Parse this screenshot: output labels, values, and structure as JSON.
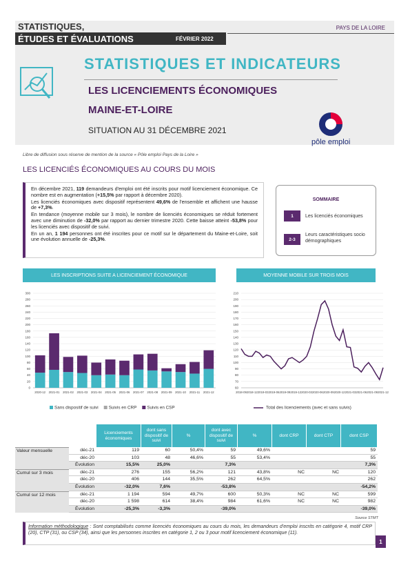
{
  "header": {
    "series_title": "STATISTIQUES,",
    "series_title_2": "ÉTUDES ET ÉVALUATIONS",
    "date": "FÉVRIER 2022",
    "region": "PAYS DE LA LOIRE"
  },
  "title": {
    "main": "STATISTIQUES ET INDICATEURS",
    "topic": "LES LICENCIEMENTS ÉCONOMIQUES",
    "area": "MAINE-ET-LOIRE",
    "situation": "SITUATION AU 31 DÉCEMBRE 2021",
    "logo": "pôle emploi"
  },
  "source_notice": "Libre de diffusion sous réserve de mention de la source « Pôle emploi Pays de la Loire »",
  "section_title": "LES LICENCIÉS ÉCONOMIQUES AU COURS DU MOIS",
  "intro": {
    "paragraphs": [
      [
        "En décembre 2021, ",
        "119",
        " demandeurs d'emploi ont été inscrits pour motif licenciement économique. Ce nombre est en augmentation (",
        "+15,5%",
        " par rapport à décembre 2020)."
      ],
      [
        "Les licenciés économiques avec dispositif représentent ",
        "49,6%",
        " de l'ensemble et affichent une hausse de ",
        "+7,3%",
        "."
      ],
      [
        "En tendance (moyenne mobile sur 3 mois), le nombre de licenciés économiques se réduit fortement avec une diminution de ",
        "-32,0%",
        " par rapport au dernier trimestre 2020. Cette baisse atteint ",
        "-53,8%",
        " pour les licenciés avec dispositif de suivi."
      ],
      [
        "En un an, ",
        "1 194",
        " personnes ont été inscrites pour ce motif sur le département du Maine-et-Loire, soit une évolution annuelle de ",
        "-25,3%",
        "."
      ]
    ]
  },
  "summary": {
    "title": "SOMMAIRE",
    "items": [
      {
        "num": "1",
        "label": "Les licenciés économiques"
      },
      {
        "num": "2-3",
        "label": "Leurs caractéristiques socio démographiques"
      }
    ]
  },
  "chart_data": [
    {
      "type": "bar",
      "stacked": true,
      "title": "LES INSCRIPTIONS SUITE A LICENCIEMENT ÉCONOMIQUE",
      "categories": [
        "2020-12",
        "2021-01",
        "2021-02",
        "2021-03",
        "2021-04",
        "2021-05",
        "2021-06",
        "2021-07",
        "2021-08",
        "2021-09",
        "2021-10",
        "2021-11",
        "2021-12"
      ],
      "series": [
        {
          "name": "Sans dispositif de suivi",
          "color": "#41b6c4",
          "values": [
            48,
            57,
            50,
            47,
            40,
            42,
            40,
            58,
            55,
            52,
            50,
            45,
            60
          ]
        },
        {
          "name": "Suivis en CRP",
          "color": "#a6a6a6",
          "values": [
            0,
            0,
            0,
            0,
            0,
            0,
            0,
            0,
            0,
            0,
            0,
            0,
            0
          ]
        },
        {
          "name": "Suivis en CSP",
          "color": "#5b2a6e",
          "values": [
            55,
            116,
            48,
            55,
            40,
            48,
            46,
            48,
            53,
            10,
            25,
            37,
            59
          ]
        }
      ],
      "ylim": [
        0,
        300
      ],
      "yticks": [
        0,
        20,
        40,
        60,
        80,
        100,
        120,
        140,
        160,
        180,
        200,
        220,
        240,
        260,
        280,
        300
      ],
      "grid": true
    },
    {
      "type": "line",
      "title": "MOYENNE MOBILE SUR TROIS MOIS",
      "categories": [
        "2018-09",
        null,
        null,
        "2018-12",
        null,
        null,
        "2019-03",
        null,
        null,
        "2019-06",
        null,
        null,
        "2019-09",
        null,
        null,
        "2019-12",
        null,
        null,
        "2020-03",
        null,
        null,
        "2020-06",
        null,
        null,
        "2020-09",
        null,
        null,
        "2020-12",
        null,
        null,
        "2021-03",
        null,
        null,
        "2021-06",
        null,
        null,
        "2021-09",
        null,
        null,
        "2021-12"
      ],
      "series": [
        {
          "name": "Total des licenciements (avec et sans suivis)",
          "color": "#4b1f5c",
          "values": [
            122,
            113,
            110,
            110,
            118,
            115,
            108,
            112,
            110,
            102,
            96,
            90,
            95,
            106,
            108,
            104,
            100,
            104,
            110,
            125,
            150,
            170,
            192,
            198,
            185,
            160,
            142,
            135,
            152,
            125,
            124,
            93,
            91,
            85,
            94,
            100,
            92,
            82,
            73,
            92
          ]
        }
      ],
      "ylim": [
        60,
        210
      ],
      "yticks": [
        60,
        70,
        80,
        90,
        100,
        110,
        120,
        130,
        140,
        150,
        160,
        170,
        180,
        190,
        200,
        210
      ],
      "grid": true
    }
  ],
  "table": {
    "header": [
      "Licenciements économiques",
      "dont sans dispositif de suivi",
      "%",
      "dont avec dispositif de suivi",
      "%",
      "dont CRP",
      "dont CTP",
      "dont CSP"
    ],
    "groups": [
      {
        "label": "Valeur mensuelle",
        "rows": [
          {
            "label": "déc-21",
            "cells": [
              "119",
              "60",
              "50,4%",
              "59",
              "49,6%",
              null,
              null,
              "59"
            ]
          },
          {
            "label": "déc-20",
            "cells": [
              "103",
              "48",
              "46,6%",
              "55",
              "53,4%",
              null,
              null,
              "55"
            ]
          },
          {
            "label": "Évolution",
            "cells": [
              "15,5%",
              "25,0%",
              null,
              "7,3%",
              null,
              null,
              null,
              "7,3%"
            ]
          }
        ]
      },
      {
        "label": "Cumul sur 3 mois",
        "rows": [
          {
            "label": "déc-21",
            "cells": [
              "276",
              "155",
              "56,2%",
              "121",
              "43,8%",
              "NC",
              "NC",
              "120"
            ]
          },
          {
            "label": "déc-20",
            "cells": [
              "406",
              "144",
              "35,5%",
              "262",
              "64,5%",
              null,
              null,
              "262"
            ]
          },
          {
            "label": "Évolution",
            "cells": [
              "-32,0%",
              "7,6%",
              null,
              "-53,8%",
              null,
              null,
              null,
              "-54,2%"
            ]
          }
        ]
      },
      {
        "label": "Cumul sur 12 mois",
        "rows": [
          {
            "label": "déc-21",
            "cells": [
              "1 194",
              "594",
              "49,7%",
              "600",
              "50,3%",
              "NC",
              "NC",
              "599"
            ]
          },
          {
            "label": "déc-20",
            "cells": [
              "1 598",
              "614",
              "38,4%",
              "984",
              "61,6%",
              "NC",
              "NC",
              "982"
            ]
          },
          {
            "label": "Évolution",
            "cells": [
              "-25,3%",
              "-3,3%",
              null,
              "-39,0%",
              null,
              null,
              null,
              "-39,0%"
            ]
          }
        ]
      }
    ]
  },
  "table_source": "Source STMT",
  "methodology": {
    "label": "Information méthodologique",
    "text": " : Sont comptabilisés comme licenciés économiques au cours du mois, les demandeurs d'emploi inscrits en catégorie 4, motif CRP (20), CTP (31), ou CSP (34), ainsi que les personnes inscrites en catégorie 1, 2 ou 3 pour motif licenciement économique (11)."
  },
  "page_number": "1"
}
